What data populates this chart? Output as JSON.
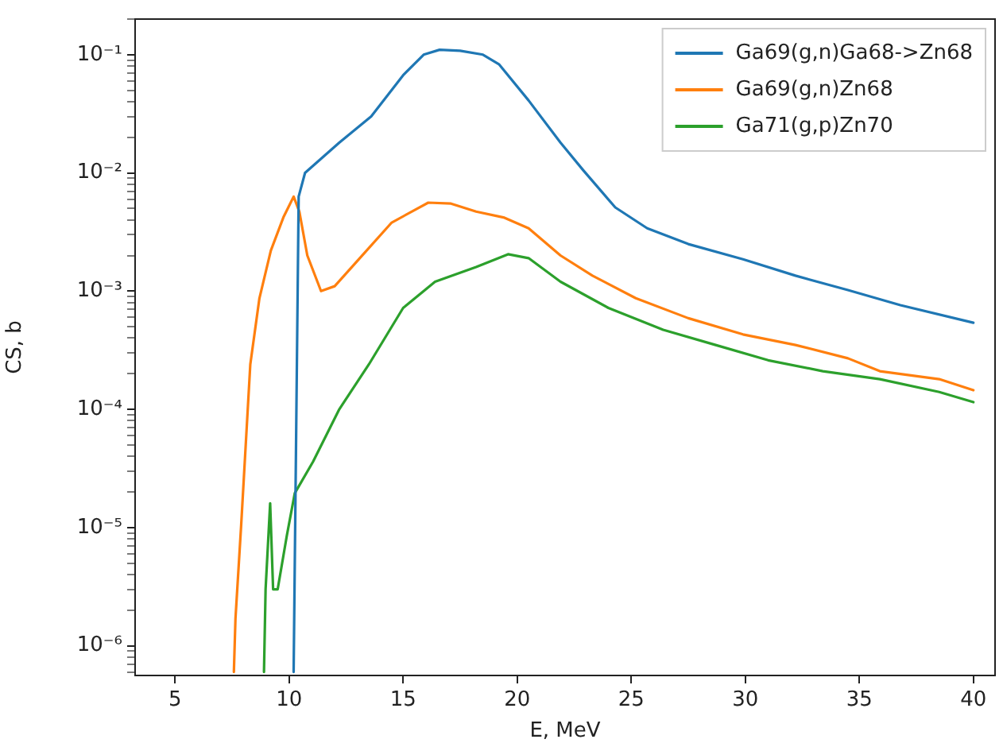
{
  "chart_data": {
    "type": "line",
    "xlabel": "E, MeV",
    "ylabel": "CS, b",
    "log": "y",
    "legend": "top right",
    "grid": false,
    "marker": "none",
    "line_style": "solid",
    "xlim": [
      3.25,
      40.95
    ],
    "xticks": [
      5,
      10,
      15,
      20,
      25,
      30,
      35,
      40
    ],
    "ylim": [
      5.6e-07,
      0.2
    ],
    "yticks": [
      {
        "value": 6e-07,
        "label": null
      },
      {
        "value": 7e-07,
        "label": null
      },
      {
        "value": 8e-07,
        "label": null
      },
      {
        "value": 9e-07,
        "label": null
      },
      {
        "value": 1e-06,
        "label": "10⁻⁶"
      },
      {
        "value": 2e-06,
        "label": null
      },
      {
        "value": 3e-06,
        "label": null
      },
      {
        "value": 4e-06,
        "label": null
      },
      {
        "value": 5e-06,
        "label": null
      },
      {
        "value": 6e-06,
        "label": null
      },
      {
        "value": 7e-06,
        "label": null
      },
      {
        "value": 8e-06,
        "label": null
      },
      {
        "value": 9e-06,
        "label": null
      },
      {
        "value": 1e-05,
        "label": "10⁻⁵"
      },
      {
        "value": 2e-05,
        "label": null
      },
      {
        "value": 3e-05,
        "label": null
      },
      {
        "value": 4e-05,
        "label": null
      },
      {
        "value": 5e-05,
        "label": null
      },
      {
        "value": 6e-05,
        "label": null
      },
      {
        "value": 7e-05,
        "label": null
      },
      {
        "value": 8e-05,
        "label": null
      },
      {
        "value": 9e-05,
        "label": null
      },
      {
        "value": 0.0001,
        "label": "10⁻⁴"
      },
      {
        "value": 0.0002,
        "label": null
      },
      {
        "value": 0.0003,
        "label": null
      },
      {
        "value": 0.0004,
        "label": null
      },
      {
        "value": 0.0005,
        "label": null
      },
      {
        "value": 0.0006,
        "label": null
      },
      {
        "value": 0.0007,
        "label": null
      },
      {
        "value": 0.0008,
        "label": null
      },
      {
        "value": 0.0009,
        "label": null
      },
      {
        "value": 0.001,
        "label": "10⁻³"
      },
      {
        "value": 0.002,
        "label": null
      },
      {
        "value": 0.003,
        "label": null
      },
      {
        "value": 0.004,
        "label": null
      },
      {
        "value": 0.005,
        "label": null
      },
      {
        "value": 0.006,
        "label": null
      },
      {
        "value": 0.007,
        "label": null
      },
      {
        "value": 0.008,
        "label": null
      },
      {
        "value": 0.009,
        "label": null
      },
      {
        "value": 0.01,
        "label": "10⁻²"
      },
      {
        "value": 0.02,
        "label": null
      },
      {
        "value": 0.03,
        "label": null
      },
      {
        "value": 0.04,
        "label": null
      },
      {
        "value": 0.05,
        "label": null
      },
      {
        "value": 0.06,
        "label": null
      },
      {
        "value": 0.07,
        "label": null
      },
      {
        "value": 0.08,
        "label": null
      },
      {
        "value": 0.09,
        "label": null
      },
      {
        "value": 0.1,
        "label": "10⁻¹"
      },
      {
        "value": 0.2,
        "label": null
      }
    ],
    "series": [
      {
        "name": "Ga69(g,n)Ga68->Zn68",
        "color": "#1f77b4",
        "x": [
          10.2,
          10.42,
          10.7,
          12.2,
          13.6,
          15.0,
          15.9,
          16.6,
          17.5,
          18.5,
          19.2,
          20.5,
          21.9,
          22.9,
          24.3,
          25.7,
          27.5,
          29.9,
          32.2,
          34.5,
          36.8,
          40.0
        ],
        "values": [
          6e-07,
          0.0063,
          0.01,
          0.018,
          0.03,
          0.067,
          0.1,
          0.11,
          0.108,
          0.1,
          0.083,
          0.041,
          0.018,
          0.0105,
          0.0051,
          0.0034,
          0.0025,
          0.00186,
          0.00135,
          0.00102,
          0.00076,
          0.00054
        ]
      },
      {
        "name": "Ga69(g,n)Zn68",
        "color": "#ff7f0e",
        "x": [
          7.58,
          7.65,
          7.9,
          8.3,
          8.7,
          9.2,
          9.75,
          10.2,
          10.45,
          10.8,
          11.4,
          12.0,
          13.1,
          14.5,
          16.1,
          17.1,
          18.2,
          19.4,
          20.5,
          21.9,
          23.3,
          25.2,
          27.5,
          29.9,
          32.2,
          34.5,
          35.9,
          38.5,
          40.0
        ],
        "values": [
          6e-07,
          1.7e-06,
          1.05e-05,
          0.00024,
          0.00087,
          0.0022,
          0.0042,
          0.0063,
          0.0047,
          0.002,
          0.001,
          0.0011,
          0.0019,
          0.0038,
          0.0056,
          0.0055,
          0.0047,
          0.0042,
          0.0034,
          0.002,
          0.00135,
          0.00087,
          0.00059,
          0.00043,
          0.00035,
          0.00027,
          0.00021,
          0.00018,
          0.000145
        ]
      },
      {
        "name": "Ga71(g,p)Zn70",
        "color": "#2ca02c",
        "x": [
          8.9,
          8.97,
          9.17,
          9.3,
          9.5,
          9.9,
          10.25,
          11.05,
          12.2,
          13.5,
          15.0,
          16.4,
          18.2,
          19.6,
          20.5,
          21.9,
          24.0,
          26.4,
          28.7,
          31.0,
          33.4,
          35.9,
          38.5,
          40.0
        ],
        "values": [
          6e-07,
          3e-06,
          1.6e-05,
          3e-06,
          3e-06,
          8.5e-06,
          1.95e-05,
          3.6e-05,
          0.0001,
          0.00024,
          0.00072,
          0.0012,
          0.0016,
          0.00205,
          0.0019,
          0.0012,
          0.00072,
          0.00047,
          0.00035,
          0.00026,
          0.00021,
          0.00018,
          0.00014,
          0.000115
        ]
      }
    ]
  }
}
